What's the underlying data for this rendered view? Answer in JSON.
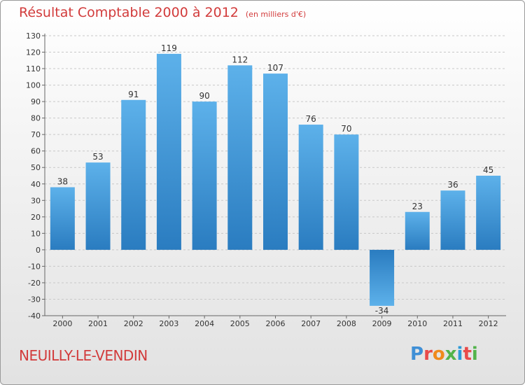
{
  "header": {
    "title": "Résultat Comptable 2000 à 2012",
    "units": "(en milliers d'€)"
  },
  "footer": {
    "commune": "NEUILLY-LE-VENDIN",
    "logo_text": "Proxiti"
  },
  "colors": {
    "title": "#d23b3b",
    "bar_light": "#5aaee8",
    "bar_dark": "#2b7fc2",
    "grid": "#c8c8c8"
  },
  "chart_data": {
    "type": "bar",
    "title": "Résultat Comptable 2000 à 2012",
    "ylabel": "(en milliers d'€)",
    "xlabel": "",
    "categories": [
      "2000",
      "2001",
      "2002",
      "2003",
      "2004",
      "2005",
      "2006",
      "2007",
      "2008",
      "2009",
      "2010",
      "2011",
      "2012"
    ],
    "values": [
      38,
      53,
      91,
      119,
      90,
      112,
      107,
      76,
      70,
      -34,
      23,
      36,
      45
    ],
    "ylim": [
      -40,
      130
    ],
    "yticks": [
      130,
      120,
      110,
      100,
      90,
      80,
      70,
      60,
      50,
      40,
      30,
      20,
      10,
      0,
      -10,
      -20,
      -30,
      -40
    ],
    "grid": true,
    "legend": "none"
  }
}
